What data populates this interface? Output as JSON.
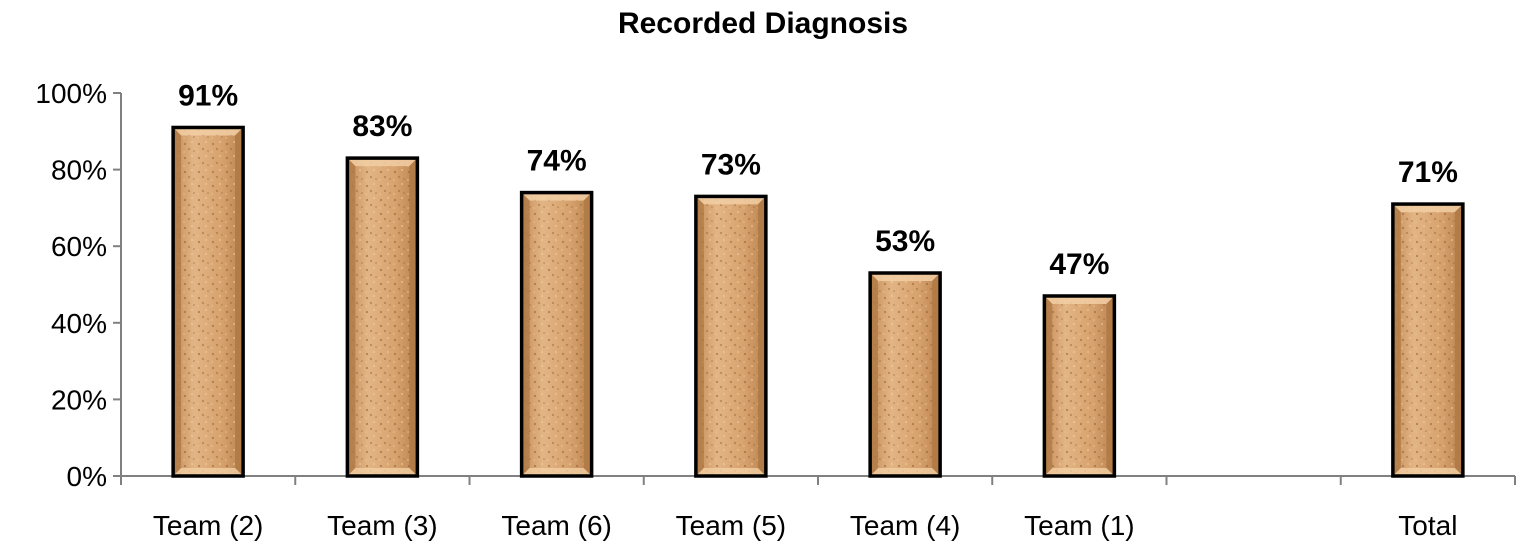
{
  "chart_data": {
    "type": "bar",
    "title": "Recorded Diagnosis",
    "xlabel": "",
    "ylabel": "",
    "ylim": [
      0,
      100
    ],
    "y_ticks": [
      "0%",
      "20%",
      "40%",
      "60%",
      "80%",
      "100%"
    ],
    "y_tick_values": [
      0,
      20,
      40,
      60,
      80,
      100
    ],
    "categories": [
      "Team (2)",
      "Team (3)",
      "Team (6)",
      "Team (5)",
      "Team (4)",
      "Team (1)",
      "",
      "Total"
    ],
    "values": [
      91,
      83,
      74,
      73,
      53,
      47,
      null,
      71
    ],
    "data_labels": [
      "91%",
      "83%",
      "74%",
      "73%",
      "53%",
      "47%",
      "",
      "71%"
    ],
    "grid": false,
    "legend": "none",
    "colors": {
      "bar_fill": "#d9a873",
      "bar_dark": "#b07a46",
      "bar_light": "#f2cfa4",
      "bar_outline": "#000000",
      "axis": "#808080"
    }
  }
}
